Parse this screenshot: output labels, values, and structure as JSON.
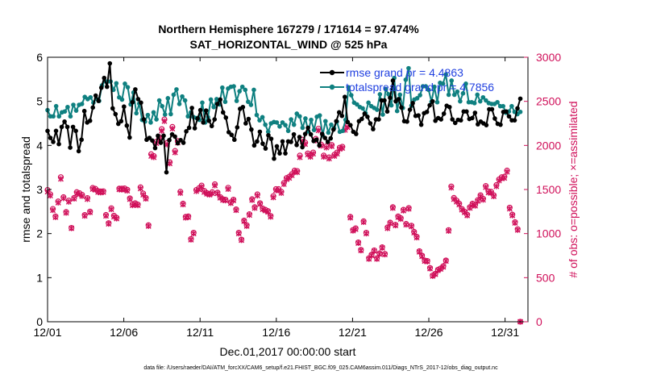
{
  "colors": {
    "rmse": "#000000",
    "totalspread": "#0f8080",
    "obs": "#d0105a",
    "legend_text": "#1f3fe0"
  },
  "chart_data": {
    "type": "line",
    "title_line1": "Northern Hemisphere 167279 / 171614 = 97.474%",
    "title_line2": "SAT_HORIZONTAL_WIND @ 525 hPa",
    "xlabel": "Dec.01,2017 00:00:00 start",
    "ylabel_left": "rmse and totalspread",
    "ylabel_right": "# of obs: o=possible; ×=assimilated",
    "footer": "data file: /Users/raeder/DAI/ATM_forcXX/CAM6_setup/f.e21.FHIST_BGC.f09_025.CAM6assim.011/Diags_NTrS_2017-12/obs_diag_output.nc",
    "xlim": [
      0,
      31.5
    ],
    "ylim_left": [
      0,
      6
    ],
    "ylim_right": [
      0,
      3000
    ],
    "x_ticks": [
      0,
      5,
      10,
      15,
      20,
      25,
      30
    ],
    "x_tick_labels": [
      "12/01",
      "12/06",
      "12/11",
      "12/16",
      "12/21",
      "12/26",
      "12/31"
    ],
    "y_ticks_left": [
      0,
      1,
      2,
      3,
      4,
      5,
      6
    ],
    "y_tick_labels_left": [
      "0",
      "1",
      "2",
      "3",
      "4",
      "5",
      "6"
    ],
    "y_ticks_right": [
      0,
      500,
      1000,
      1500,
      2000,
      2500,
      3000
    ],
    "y_tick_labels_right": [
      "0",
      "500",
      "1000",
      "1500",
      "2000",
      "2500",
      "3000"
    ],
    "grid": false,
    "legend_position": "top-right",
    "series": [
      {
        "name": "rmse grand pr = 4.4863",
        "values": [
          4.33,
          4.17,
          4.08,
          4.33,
          4.03,
          4.42,
          4.54,
          4.42,
          3.95,
          4.42,
          4.33,
          3.87,
          4.13,
          4.78,
          4.52,
          4.56,
          4.86,
          5.13,
          5.01,
          5.31,
          5.53,
          5.33,
          5.86,
          4.84,
          4.71,
          4.49,
          4.55,
          4.88,
          4.45,
          4.18,
          4.98,
          5.27,
          5.05,
          4.97,
          4.59,
          4.13,
          4.17,
          4.11,
          3.94,
          4.22,
          4.06,
          4.22,
          3.39,
          4.12,
          4.25,
          4.2,
          4.05,
          4.12,
          4.06,
          4.32,
          4.4,
          4.85,
          4.39,
          4.61,
          4.8,
          4.52,
          4.79,
          4.56,
          4.44,
          4.59,
          4.94,
          5.04,
          4.75,
          4.63,
          4.3,
          4.24,
          4.13,
          4.41,
          4.83,
          4.87,
          4.5,
          4.6,
          4.36,
          4.0,
          4.09,
          4.31,
          4.04,
          3.93,
          4.23,
          4.15,
          3.7,
          3.98,
          3.82,
          4.09,
          3.82,
          4.09,
          4.08,
          4.25,
          4.01,
          4.19,
          3.96,
          4.26,
          4.4,
          4.25,
          4.1,
          4.13,
          4.0,
          4.26,
          4.17,
          4.08,
          4.16,
          4.36,
          4.55,
          4.75,
          4.67,
          5.1,
          4.53,
          4.46,
          4.31,
          4.26,
          4.55,
          4.6,
          4.72,
          4.65,
          4.5,
          4.37,
          4.59,
          4.59,
          5.02,
          5.02,
          4.77,
          5.08,
          5.47,
          5.0,
          5.05,
          4.86,
          4.55,
          4.54,
          4.81,
          4.96,
          4.67,
          4.68,
          4.47,
          4.73,
          4.76,
          4.91,
          5.0,
          4.56,
          4.62,
          4.59,
          4.72,
          4.9,
          4.87,
          4.59,
          4.51,
          4.58,
          4.57,
          4.77,
          4.77,
          4.6,
          4.62,
          4.74,
          4.48,
          4.54,
          4.5,
          4.46,
          4.82,
          4.82,
          4.61,
          4.49,
          4.47,
          4.76,
          4.77,
          4.66,
          4.57,
          4.57,
          4.84,
          5.06
        ]
      },
      {
        "name": "totalspread grand pr = 4.7856",
        "values": [
          4.8,
          4.66,
          4.66,
          4.89,
          4.66,
          4.75,
          4.77,
          4.87,
          4.66,
          4.92,
          4.79,
          4.92,
          4.94,
          5.1,
          5.05,
          5.09,
          4.97,
          5.06,
          5.01,
          5.36,
          5.46,
          5.45,
          5.45,
          5.26,
          5.41,
          5.09,
          5.04,
          5.4,
          5.32,
          4.93,
          5.2,
          4.73,
          4.95,
          4.58,
          4.54,
          4.69,
          4.52,
          4.75,
          4.59,
          5.02,
          4.89,
          4.7,
          5.07,
          4.71,
          5.15,
          5.27,
          4.94,
          5.11,
          5.02,
          4.66,
          4.75,
          4.64,
          4.62,
          4.58,
          4.97,
          4.52,
          4.64,
          5.04,
          4.87,
          5.05,
          4.93,
          5.31,
          4.99,
          5.29,
          5.33,
          5.34,
          5.01,
          5.23,
          5.33,
          5.26,
          4.99,
          4.92,
          5.26,
          4.69,
          4.57,
          4.64,
          4.47,
          4.31,
          4.5,
          4.53,
          4.52,
          4.43,
          4.52,
          4.46,
          4.33,
          4.59,
          4.47,
          4.72,
          4.66,
          4.4,
          4.61,
          4.32,
          4.58,
          4.35,
          4.65,
          4.68,
          4.23,
          4.55,
          4.29,
          4.47,
          4.39,
          4.54,
          4.31,
          4.33,
          4.58,
          5.32,
          5.14,
          4.97,
          4.93,
          4.87,
          4.84,
          4.73,
          4.97,
          4.89,
          4.85,
          4.81,
          5.16,
          4.7,
          5.28,
          5.16,
          4.91,
          5.53,
          4.78,
          5.15,
          4.85,
          5.49,
          5.75,
          4.9,
          5.04,
          5.07,
          5.14,
          5.34,
          5.34,
          5.26,
          4.99,
          5.33,
          4.98,
          5.42,
          5.4,
          5.61,
          5.15,
          5.47,
          5.15,
          5.22,
          5.0,
          5.18,
          5.4,
          4.98,
          4.98,
          4.96,
          5.15,
          5.0,
          5.09,
          5.02,
          4.96,
          4.94,
          4.94,
          4.98,
          4.89,
          4.89,
          4.74,
          4.77,
          4.89,
          4.76,
          4.71,
          4.76
        ]
      },
      {
        "name": "obs possible",
        "values": [
          1495,
          1446,
          1280,
          1195,
          1365,
          1640,
          1413,
          1245,
          1375,
          1065,
          1405,
          1470,
          1459,
          1440,
          1211,
          1403,
          1250,
          1518,
          1508,
          1483,
          1478,
          1480,
          1212,
          1118,
          1288,
          1203,
          1180,
          1510,
          1510,
          1513,
          1498,
          1400,
          1330,
          1345,
          1330,
          1525,
          1455,
          1405,
          1095,
          1900,
          1880,
          2042,
          2095,
          2185,
          2295,
          2028,
          1810,
          2210,
          1938,
          2050,
          1475,
          1340,
          1190,
          1195,
          939,
          1010,
          1495,
          1515,
          1545,
          1485,
          1460,
          1450,
          1470,
          1560,
          1465,
          1415,
          1390,
          1385,
          1520,
          1355,
          1385,
          1275,
          1010,
          932,
          1148,
          1095,
          1220,
          1390,
          1300,
          1445,
          1345,
          1285,
          1270,
          1255,
          1200,
          1425,
          1505,
          1505,
          1475,
          1575,
          1630,
          1645,
          1675,
          1715,
          1710,
          1885,
          2065,
          2032,
          1910,
          1885,
          1920,
          2075,
          2190,
          2010,
          1885,
          1990,
          1865,
          2005,
          1895,
          1920,
          1975,
          1985,
          2195,
          2225,
          1190,
          1041,
          1060,
          900,
          815,
          1140,
          1010,
          720,
          760,
          810,
          720,
          775,
          845,
          770,
          1070,
          1125,
          1300,
          1100,
          1195,
          1175,
          1270,
          1110,
          1290,
          1090,
          1020,
          965,
          800,
          750,
          695,
          690,
          610,
          525,
          545,
          590,
          605,
          630,
          695,
          1040,
          1535,
          1405,
          1375,
          1340,
          1280,
          1250,
          1215,
          1300,
          1340,
          1325,
          1380,
          1435,
          1395,
          1540,
          1480,
          1475,
          1435,
          1550,
          1615,
          1640,
          1645,
          1715,
          1295,
          1215,
          1130,
          1050,
          0
        ]
      },
      {
        "name": "obs assimilated",
        "values": [
          1475,
          1430,
          1265,
          1185,
          1350,
          1620,
          1400,
          1235,
          1360,
          1060,
          1395,
          1455,
          1445,
          1425,
          1200,
          1390,
          1240,
          1505,
          1495,
          1470,
          1465,
          1470,
          1200,
          1110,
          1275,
          1190,
          1170,
          1500,
          1498,
          1500,
          1485,
          1390,
          1320,
          1335,
          1320,
          1510,
          1440,
          1395,
          1085,
          1880,
          1865,
          2025,
          2080,
          2165,
          2275,
          2010,
          1795,
          2190,
          1920,
          2030,
          1460,
          1330,
          1180,
          1185,
          930,
          1000,
          1480,
          1500,
          1530,
          1470,
          1450,
          1440,
          1455,
          1545,
          1455,
          1405,
          1380,
          1375,
          1505,
          1345,
          1375,
          1265,
          1000,
          925,
          1140,
          1085,
          1210,
          1380,
          1290,
          1430,
          1335,
          1275,
          1260,
          1245,
          1190,
          1410,
          1490,
          1490,
          1460,
          1560,
          1615,
          1630,
          1660,
          1700,
          1695,
          1865,
          2045,
          2015,
          1895,
          1870,
          1905,
          2055,
          2170,
          1995,
          1870,
          1975,
          1850,
          1990,
          1880,
          1905,
          1960,
          1970,
          2175,
          2205,
          1180,
          1032,
          1050,
          892,
          808,
          1130,
          1000,
          712,
          752,
          802,
          712,
          768,
          838,
          762,
          1060,
          1115,
          1290,
          1092,
          1185,
          1165,
          1260,
          1100,
          1280,
          1080,
          1010,
          955,
          792,
          742,
          688,
          682,
          602,
          518,
          538,
          582,
          598,
          622,
          688,
          1030,
          1520,
          1390,
          1360,
          1328,
          1270,
          1240,
          1205,
          1290,
          1330,
          1315,
          1368,
          1422,
          1382,
          1525,
          1465,
          1460,
          1422,
          1535,
          1600,
          1625,
          1630,
          1700,
          1282,
          1205,
          1120,
          1040,
          0
        ]
      }
    ]
  }
}
